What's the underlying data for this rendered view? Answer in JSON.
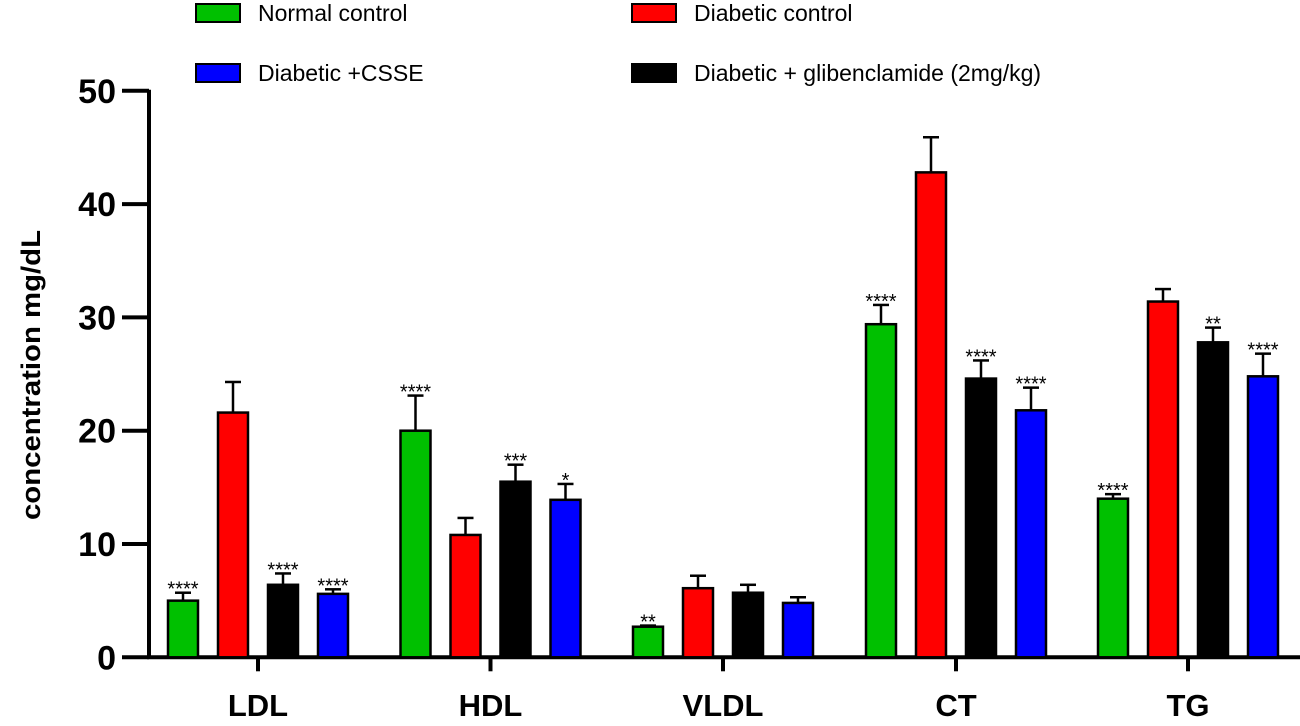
{
  "chart_data": {
    "type": "bar",
    "title": "",
    "xlabel": "",
    "ylabel": "concentration mg/dL",
    "ylim": [
      0,
      50
    ],
    "yticks": [
      0,
      10,
      20,
      30,
      40,
      50
    ],
    "grid": false,
    "legend_position": "top",
    "categories": [
      "LDL",
      "HDL",
      "VLDL",
      "CT",
      "TG"
    ],
    "series": [
      {
        "name": "Normal control",
        "color": "#00c000",
        "values": [
          5.0,
          20.0,
          2.7,
          29.4,
          14.0
        ],
        "error_upper": [
          5.7,
          23.1,
          2.8,
          31.1,
          14.4
        ],
        "significance": [
          "****",
          "****",
          "**",
          "****",
          "****"
        ]
      },
      {
        "name": "Diabetic control",
        "color": "#ff0000",
        "values": [
          21.6,
          10.8,
          6.1,
          42.8,
          31.4
        ],
        "error_upper": [
          24.3,
          12.3,
          7.2,
          45.9,
          32.5
        ],
        "significance": [
          "",
          "",
          "",
          "",
          ""
        ]
      },
      {
        "name": "Diabetic + glibenclamide (2mg/kg)",
        "color": "#000000",
        "values": [
          6.4,
          15.5,
          5.7,
          24.6,
          27.8
        ],
        "error_upper": [
          7.4,
          17.0,
          6.4,
          26.2,
          29.1
        ],
        "significance": [
          "****",
          "***",
          "",
          "****",
          "**"
        ]
      },
      {
        "name": "Diabetic +CSSE",
        "color": "#0000ff",
        "values": [
          5.6,
          13.9,
          4.8,
          21.8,
          24.8
        ],
        "error_upper": [
          6.0,
          15.3,
          5.3,
          23.8,
          26.8
        ],
        "significance": [
          "****",
          "*",
          "",
          "****",
          "****"
        ]
      }
    ],
    "legend_order": [
      0,
      1,
      3,
      2
    ]
  }
}
